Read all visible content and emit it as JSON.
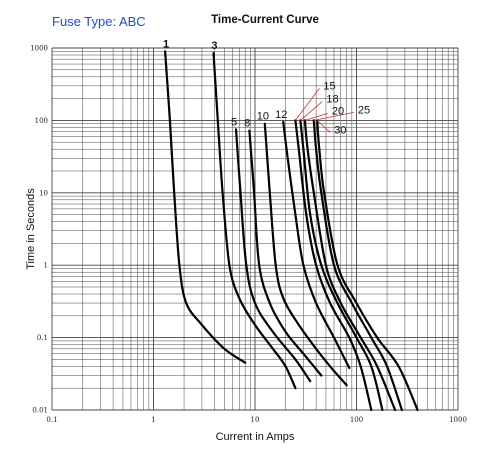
{
  "header": {
    "fuse_type": "Fuse Type: ABC",
    "title": "Time-Current Curve"
  },
  "chart_data": {
    "type": "line",
    "title": "Time-Current Curve",
    "xlabel": "Current in Amps",
    "ylabel": "Time in Seconds",
    "xscale": "log",
    "yscale": "log",
    "xlim": [
      0.1,
      1000
    ],
    "ylim": [
      0.01,
      1000
    ],
    "grid": true,
    "x_tick_labels": [
      "0.1",
      "1",
      "10",
      "100",
      "1000"
    ],
    "y_tick_labels": [
      "1000",
      "100",
      "10",
      "1",
      "0.1",
      "0.01"
    ],
    "colors": {
      "curve": "#000000",
      "grid": "#444444",
      "leader": "#cc3333",
      "fuse_type_text": "#1f4fc4"
    },
    "series": [
      {
        "name": "1",
        "points": [
          [
            1.3,
            900
          ],
          [
            1.45,
            100
          ],
          [
            1.6,
            10
          ],
          [
            1.8,
            1
          ],
          [
            2.1,
            0.3
          ],
          [
            3,
            0.15
          ],
          [
            5,
            0.07
          ],
          [
            8,
            0.045
          ]
        ]
      },
      {
        "name": "3",
        "points": [
          [
            3.9,
            850
          ],
          [
            4.3,
            100
          ],
          [
            4.8,
            10
          ],
          [
            5.6,
            1
          ],
          [
            7,
            0.35
          ],
          [
            10,
            0.15
          ],
          [
            15,
            0.07
          ],
          [
            20,
            0.04
          ],
          [
            25,
            0.02
          ]
        ]
      },
      {
        "name": "5",
        "points": [
          [
            6.5,
            75
          ],
          [
            7.2,
            10
          ],
          [
            8.2,
            1
          ],
          [
            10,
            0.3
          ],
          [
            15,
            0.12
          ],
          [
            25,
            0.05
          ],
          [
            35,
            0.025
          ]
        ]
      },
      {
        "name": "8",
        "points": [
          [
            8.8,
            72
          ],
          [
            9.8,
            10
          ],
          [
            11,
            1
          ],
          [
            14,
            0.3
          ],
          [
            20,
            0.12
          ],
          [
            30,
            0.06
          ],
          [
            45,
            0.03
          ]
        ]
      },
      {
        "name": "10",
        "points": [
          [
            12.5,
            90
          ],
          [
            14,
            10
          ],
          [
            16,
            1
          ],
          [
            19,
            0.35
          ],
          [
            27,
            0.15
          ],
          [
            40,
            0.07
          ],
          [
            55,
            0.04
          ],
          [
            80,
            0.022
          ]
        ]
      },
      {
        "name": "12",
        "points": [
          [
            19,
            95
          ],
          [
            21,
            30
          ],
          [
            25,
            5
          ],
          [
            30,
            1
          ],
          [
            40,
            0.3
          ],
          [
            60,
            0.1
          ],
          [
            85,
            0.038
          ]
        ]
      },
      {
        "name": "15",
        "points": [
          [
            25,
            100
          ],
          [
            27,
            40
          ],
          [
            32,
            5
          ],
          [
            40,
            1
          ],
          [
            55,
            0.3
          ],
          [
            85,
            0.1
          ],
          [
            110,
            0.04
          ],
          [
            140,
            0.01
          ]
        ]
      },
      {
        "name": "18",
        "points": [
          [
            28,
            100
          ],
          [
            30,
            40
          ],
          [
            35,
            5
          ],
          [
            45,
            1
          ],
          [
            65,
            0.3
          ],
          [
            100,
            0.1
          ],
          [
            140,
            0.04
          ],
          [
            180,
            0.01
          ]
        ]
      },
      {
        "name": "20",
        "points": [
          [
            31,
            100
          ],
          [
            33,
            40
          ],
          [
            38,
            10
          ],
          [
            50,
            1
          ],
          [
            70,
            0.3
          ],
          [
            110,
            0.1
          ],
          [
            160,
            0.04
          ],
          [
            240,
            0.01
          ]
        ]
      },
      {
        "name": "25",
        "points": [
          [
            38,
            100
          ],
          [
            40,
            40
          ],
          [
            45,
            10
          ],
          [
            60,
            1
          ],
          [
            90,
            0.3
          ],
          [
            140,
            0.1
          ],
          [
            200,
            0.04
          ],
          [
            280,
            0.01
          ]
        ]
      },
      {
        "name": "30",
        "points": [
          [
            41,
            100
          ],
          [
            43,
            40
          ],
          [
            48,
            10
          ],
          [
            65,
            1
          ],
          [
            100,
            0.3
          ],
          [
            160,
            0.1
          ],
          [
            260,
            0.04
          ],
          [
            400,
            0.01
          ]
        ]
      }
    ]
  }
}
